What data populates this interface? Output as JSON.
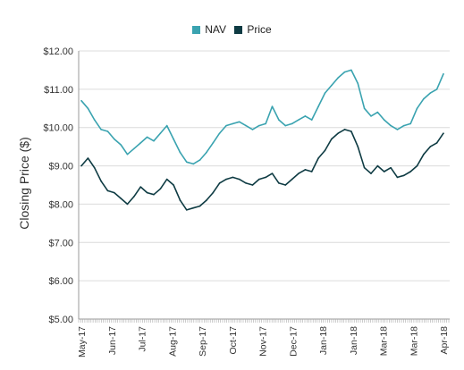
{
  "chart_data": {
    "type": "line",
    "ylabel": "Closing Price ($)",
    "xlabel": "",
    "ylim": [
      5,
      12
    ],
    "yticks": [
      "$5.00",
      "$6.00",
      "$7.00",
      "$8.00",
      "$9.00",
      "$10.00",
      "$11.00",
      "$12.00"
    ],
    "ytick_values": [
      5,
      6,
      7,
      8,
      9,
      10,
      11,
      12
    ],
    "xticks": [
      "May-17",
      "Jun-17",
      "Jul-17",
      "Aug-17",
      "Sep-17",
      "Oct-17",
      "Nov-17",
      "Dec-17",
      "Jan-18",
      "Jan-18",
      "Mar-18",
      "Mar-18",
      "Apr-18"
    ],
    "grid": true,
    "legend_position": "top-center",
    "series": [
      {
        "name": "NAV",
        "color": "#3aa3b0",
        "points": [
          [
            "2017-05-01",
            10.7
          ],
          [
            "2017-05-08",
            10.5
          ],
          [
            "2017-05-15",
            10.2
          ],
          [
            "2017-05-22",
            9.95
          ],
          [
            "2017-05-29",
            9.9
          ],
          [
            "2017-06-05",
            9.7
          ],
          [
            "2017-06-12",
            9.55
          ],
          [
            "2017-06-19",
            9.3
          ],
          [
            "2017-06-26",
            9.45
          ],
          [
            "2017-07-03",
            9.6
          ],
          [
            "2017-07-10",
            9.75
          ],
          [
            "2017-07-17",
            9.65
          ],
          [
            "2017-07-24",
            9.85
          ],
          [
            "2017-07-31",
            10.05
          ],
          [
            "2017-08-07",
            9.7
          ],
          [
            "2017-08-14",
            9.35
          ],
          [
            "2017-08-21",
            9.1
          ],
          [
            "2017-08-28",
            9.05
          ],
          [
            "2017-09-04",
            9.15
          ],
          [
            "2017-09-11",
            9.35
          ],
          [
            "2017-09-18",
            9.6
          ],
          [
            "2017-09-25",
            9.85
          ],
          [
            "2017-10-02",
            10.05
          ],
          [
            "2017-10-09",
            10.1
          ],
          [
            "2017-10-16",
            10.15
          ],
          [
            "2017-10-23",
            10.05
          ],
          [
            "2017-10-30",
            9.95
          ],
          [
            "2017-11-06",
            10.05
          ],
          [
            "2017-11-13",
            10.1
          ],
          [
            "2017-11-20",
            10.55
          ],
          [
            "2017-11-27",
            10.2
          ],
          [
            "2017-12-04",
            10.05
          ],
          [
            "2017-12-11",
            10.1
          ],
          [
            "2017-12-18",
            10.2
          ],
          [
            "2017-12-25",
            10.3
          ],
          [
            "2018-01-01",
            10.2
          ],
          [
            "2018-01-08",
            10.55
          ],
          [
            "2018-01-15",
            10.9
          ],
          [
            "2018-01-22",
            11.1
          ],
          [
            "2018-01-29",
            11.3
          ],
          [
            "2018-02-05",
            11.45
          ],
          [
            "2018-02-12",
            11.5
          ],
          [
            "2018-02-19",
            11.15
          ],
          [
            "2018-02-26",
            10.5
          ],
          [
            "2018-03-05",
            10.3
          ],
          [
            "2018-03-12",
            10.4
          ],
          [
            "2018-03-19",
            10.2
          ],
          [
            "2018-03-26",
            10.05
          ],
          [
            "2018-04-02",
            9.95
          ],
          [
            "2018-04-09",
            10.05
          ],
          [
            "2018-04-16",
            10.1
          ],
          [
            "2018-04-23",
            10.5
          ],
          [
            "2018-04-30",
            10.75
          ],
          [
            "2018-05-07",
            10.9
          ],
          [
            "2018-05-14",
            11.0
          ],
          [
            "2018-05-21",
            11.4
          ]
        ]
      },
      {
        "name": "Price",
        "color": "#0e3b43",
        "points": [
          [
            "2017-05-01",
            9.0
          ],
          [
            "2017-05-08",
            9.2
          ],
          [
            "2017-05-15",
            8.95
          ],
          [
            "2017-05-22",
            8.6
          ],
          [
            "2017-05-29",
            8.35
          ],
          [
            "2017-06-05",
            8.3
          ],
          [
            "2017-06-12",
            8.15
          ],
          [
            "2017-06-19",
            8.0
          ],
          [
            "2017-06-26",
            8.2
          ],
          [
            "2017-07-03",
            8.45
          ],
          [
            "2017-07-10",
            8.3
          ],
          [
            "2017-07-17",
            8.25
          ],
          [
            "2017-07-24",
            8.4
          ],
          [
            "2017-07-31",
            8.65
          ],
          [
            "2017-08-07",
            8.5
          ],
          [
            "2017-08-14",
            8.1
          ],
          [
            "2017-08-21",
            7.85
          ],
          [
            "2017-08-28",
            7.9
          ],
          [
            "2017-09-04",
            7.95
          ],
          [
            "2017-09-11",
            8.1
          ],
          [
            "2017-09-18",
            8.3
          ],
          [
            "2017-09-25",
            8.55
          ],
          [
            "2017-10-02",
            8.65
          ],
          [
            "2017-10-09",
            8.7
          ],
          [
            "2017-10-16",
            8.65
          ],
          [
            "2017-10-23",
            8.55
          ],
          [
            "2017-10-30",
            8.5
          ],
          [
            "2017-11-06",
            8.65
          ],
          [
            "2017-11-13",
            8.7
          ],
          [
            "2017-11-20",
            8.8
          ],
          [
            "2017-11-27",
            8.55
          ],
          [
            "2017-12-04",
            8.5
          ],
          [
            "2017-12-11",
            8.65
          ],
          [
            "2017-12-18",
            8.8
          ],
          [
            "2017-12-25",
            8.9
          ],
          [
            "2018-01-01",
            8.85
          ],
          [
            "2018-01-08",
            9.2
          ],
          [
            "2018-01-15",
            9.4
          ],
          [
            "2018-01-22",
            9.7
          ],
          [
            "2018-01-29",
            9.85
          ],
          [
            "2018-02-05",
            9.95
          ],
          [
            "2018-02-12",
            9.9
          ],
          [
            "2018-02-19",
            9.5
          ],
          [
            "2018-02-26",
            8.95
          ],
          [
            "2018-03-05",
            8.8
          ],
          [
            "2018-03-12",
            9.0
          ],
          [
            "2018-03-19",
            8.85
          ],
          [
            "2018-03-26",
            8.95
          ],
          [
            "2018-04-02",
            8.7
          ],
          [
            "2018-04-09",
            8.75
          ],
          [
            "2018-04-16",
            8.85
          ],
          [
            "2018-04-23",
            9.0
          ],
          [
            "2018-04-30",
            9.3
          ],
          [
            "2018-05-07",
            9.5
          ],
          [
            "2018-05-14",
            9.6
          ],
          [
            "2018-05-21",
            9.85
          ]
        ]
      }
    ]
  }
}
